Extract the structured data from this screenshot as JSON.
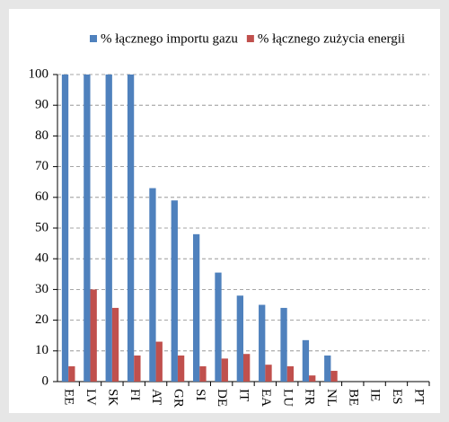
{
  "chart_data": {
    "type": "bar",
    "categories": [
      "EE",
      "LV",
      "SK",
      "FI",
      "AT",
      "GR",
      "SI",
      "DE",
      "IT",
      "EA",
      "LU",
      "FR",
      "NL",
      "BE",
      "IE",
      "ES",
      "PT"
    ],
    "series": [
      {
        "name": "% łącznego importu gazu",
        "color": "#4f81bd",
        "values": [
          100,
          100,
          100,
          100,
          63,
          59,
          48,
          35.5,
          28,
          25,
          24,
          13.5,
          8.5,
          0,
          0,
          0,
          0
        ]
      },
      {
        "name": "% łącznego zużycia energii",
        "color": "#c0504d",
        "values": [
          5,
          30,
          24,
          8.5,
          13,
          8.5,
          5,
          7.5,
          9,
          5.5,
          5,
          2,
          3.5,
          0,
          0,
          0,
          0
        ]
      }
    ],
    "ylim": [
      0,
      100
    ],
    "yticks": [
      0,
      10,
      20,
      30,
      40,
      50,
      60,
      70,
      80,
      90,
      100
    ],
    "grid": true
  }
}
